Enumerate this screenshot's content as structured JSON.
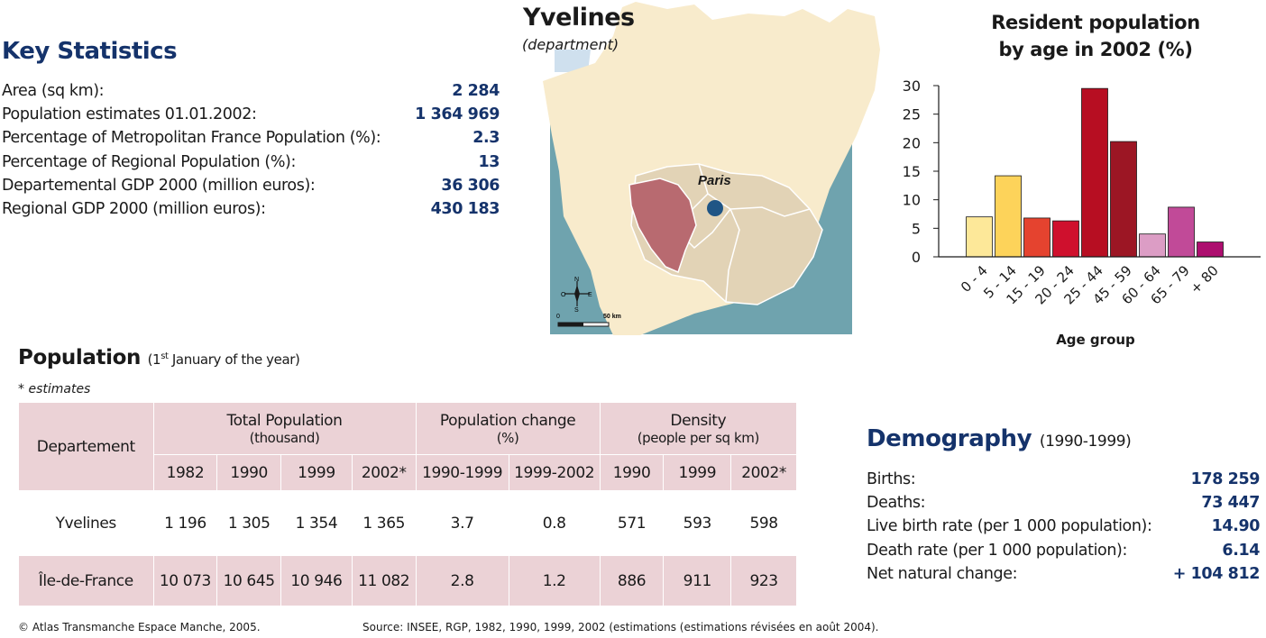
{
  "key_statistics": {
    "title": "Key Statistics",
    "rows": [
      {
        "label": "Area (sq km):",
        "value": "2 284"
      },
      {
        "label": "Population estimates 01.01.2002:",
        "value": "1 364 969"
      },
      {
        "label": "Percentage of Metropolitan France Population (%):",
        "value": "2.3"
      },
      {
        "label": "Percentage of Regional Population (%):",
        "value": "13"
      },
      {
        "label": "Departemental GDP 2000 (million euros):",
        "value": "36 306"
      },
      {
        "label": "Regional GDP 2000 (million euros):",
        "value": "430 183"
      }
    ]
  },
  "map": {
    "title": "Yvelines",
    "subtitle": "(department)",
    "city_label": "Paris",
    "compass": {
      "n": "N",
      "s": "S",
      "e": "E",
      "o": "O"
    },
    "scale": {
      "start": "0",
      "end": "50 km"
    },
    "colors": {
      "land": "#f8ebcc",
      "region": "#e2d3b6",
      "department": "#b86a70",
      "sea": "#6fa3ae",
      "paris_dot": "#1f5585"
    }
  },
  "chart_data": {
    "type": "bar",
    "title": "Resident population by age in 2002 (%)",
    "title_lines": [
      "Resident population",
      "by age in 2002 (%)"
    ],
    "xlabel": "Age group",
    "ylabel": "",
    "categories": [
      "0 - 4",
      "5 - 14",
      "15 - 19",
      "20 - 24",
      "25 - 44",
      "45 - 59",
      "60 - 64",
      "65 - 79",
      "+ 80"
    ],
    "values": [
      7,
      14.2,
      6.8,
      6.3,
      29.5,
      20.2,
      4,
      8.7,
      2.6
    ],
    "colors": [
      "#fde899",
      "#fdd35a",
      "#e5432f",
      "#cf102d",
      "#b70e22",
      "#9c1624",
      "#dc9dc5",
      "#c14a98",
      "#ad0e6f"
    ],
    "ylim": [
      0,
      30
    ],
    "yticks": [
      "0",
      "5",
      "10",
      "15",
      "20",
      "25",
      "30"
    ],
    "grid": false
  },
  "population": {
    "title": "Population",
    "subtitle_pre": "(1",
    "subtitle_sup": "st",
    "subtitle_post": " January of the year)",
    "note": "* estimates",
    "header": {
      "dep": "Departement",
      "total": "Total Population",
      "total_unit": "(thousand)",
      "change": "Population change",
      "change_unit": "(%)",
      "density": "Density",
      "density_unit": "(people per sq km)",
      "years": [
        "1982",
        "1990",
        "1999",
        "2002*",
        "1990-1999",
        "1999-2002",
        "1990",
        "1999",
        "2002*"
      ]
    },
    "rows": [
      {
        "name": "Yvelines",
        "cells": [
          "1 196",
          "1 305",
          "1 354",
          "1 365",
          "3.7",
          "0.8",
          "571",
          "593",
          "598"
        ]
      },
      {
        "name": "Île-de-France",
        "cells": [
          "10 073",
          "10 645",
          "10 946",
          "11 082",
          "2.8",
          "1.2",
          "886",
          "911",
          "923"
        ]
      }
    ]
  },
  "demography": {
    "title": "Demography",
    "subtitle": "(1990-1999)",
    "rows": [
      {
        "label": "Births:",
        "value": "178 259"
      },
      {
        "label": "Deaths:",
        "value": "73 447"
      },
      {
        "label": "Live birth rate (per 1 000 population):",
        "value": "14.90"
      },
      {
        "label": "Death rate (per 1 000 population):",
        "value": "6.14"
      },
      {
        "label": "Net natural change:",
        "value": "+ 104 812"
      }
    ]
  },
  "footer": {
    "copyright": "© Atlas Transmanche Espace Manche, 2005.",
    "source": "Source: INSEE, RGP, 1982, 1990, 1999, 2002 (estimations (estimations révisées en août 2004)."
  }
}
